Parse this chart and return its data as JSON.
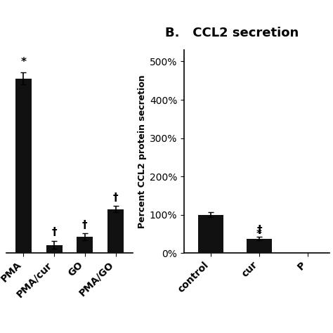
{
  "left_chart": {
    "categories": [
      "PMA",
      "PMA/cur",
      "GO",
      "PMA/GO"
    ],
    "values": [
      430,
      20,
      40,
      108
    ],
    "errors": [
      15,
      10,
      8,
      8
    ],
    "color": "#111111",
    "annotations": [
      "*",
      "†",
      "†",
      "†"
    ],
    "ylim": [
      0,
      500
    ]
  },
  "right_chart": {
    "title": "B.   CCL2 secretion",
    "categories": [
      "control",
      "cur",
      "P"
    ],
    "values": [
      100,
      38,
      0
    ],
    "errors": [
      6,
      4,
      0
    ],
    "color": "#111111",
    "annotations": [
      "",
      "†\n*",
      ""
    ],
    "ylabel": "Percent CCL2 protein secretion",
    "yticks": [
      0,
      100,
      200,
      300,
      400,
      500
    ],
    "ylim": [
      0,
      530
    ],
    "yticklabels": [
      "0%",
      "100%",
      "200%",
      "300%",
      "400%",
      "500%"
    ]
  },
  "background_color": "#ffffff",
  "bar_width": 0.52,
  "fontsize": 10.5
}
